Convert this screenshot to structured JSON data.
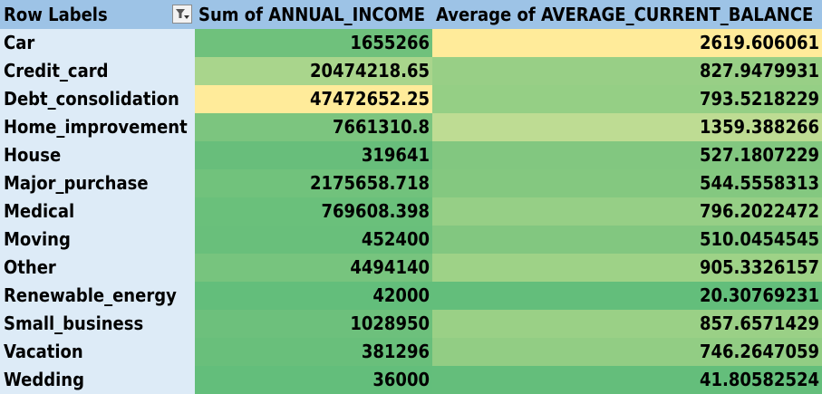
{
  "pivot": {
    "headers": {
      "row_labels": "Row Labels",
      "sum_income": "Sum of ANNUAL_INCOME",
      "avg_balance": "Average of AVERAGE_CURRENT_BALANCE"
    },
    "filter_icon": "filter-dropdown-icon",
    "colors": {
      "header_bg": "#9dc3e6",
      "row_label_bg": "#ddebf7",
      "scale_low": "#63be7b",
      "scale_high": "#ffeb84"
    },
    "rows": [
      {
        "label": "Car",
        "sum_income": "1655266",
        "avg_balance": "2619.606061",
        "sum_color": "#6fc17c",
        "avg_color": "#ffeb9a"
      },
      {
        "label": "Credit_card",
        "sum_income": "20474218.65",
        "avg_balance": "827.9479931",
        "sum_color": "#a9d58c",
        "avg_color": "#98cf86"
      },
      {
        "label": "Debt_consolidation",
        "sum_income": "47472652.25",
        "avg_balance": "793.5218229",
        "sum_color": "#ffeb9a",
        "avg_color": "#95cf85"
      },
      {
        "label": "Home_improvement",
        "sum_income": "7661310.8",
        "avg_balance": "1359.388266",
        "sum_color": "#7cc57f",
        "avg_color": "#bedc93"
      },
      {
        "label": "House",
        "sum_income": "319641",
        "avg_balance": "527.1807229",
        "sum_color": "#68be7b",
        "avg_color": "#82c780"
      },
      {
        "label": "Major_purchase",
        "sum_income": "2175658.718",
        "avg_balance": "544.5558313",
        "sum_color": "#71c27c",
        "avg_color": "#84c880"
      },
      {
        "label": "Medical",
        "sum_income": "769608.398",
        "avg_balance": "796.2022472",
        "sum_color": "#6ac07b",
        "avg_color": "#96cf86"
      },
      {
        "label": "Moving",
        "sum_income": "452400",
        "avg_balance": "510.0454545",
        "sum_color": "#69bf7b",
        "avg_color": "#82c780"
      },
      {
        "label": "Other",
        "sum_income": "4494140",
        "avg_balance": "905.3326157",
        "sum_color": "#77c47e",
        "avg_color": "#9ed287"
      },
      {
        "label": "Renewable_energy",
        "sum_income": "42000",
        "avg_balance": "20.30769231",
        "sum_color": "#63be7b",
        "avg_color": "#63be7b"
      },
      {
        "label": "Small_business",
        "sum_income": "1028950",
        "avg_balance": "857.6571429",
        "sum_color": "#6dc07c",
        "avg_color": "#9ad086"
      },
      {
        "label": "Vacation",
        "sum_income": "381296",
        "avg_balance": "746.2647059",
        "sum_color": "#69bf7b",
        "avg_color": "#92cd84"
      },
      {
        "label": "Wedding",
        "sum_income": "36000",
        "avg_balance": "41.80582524",
        "sum_color": "#63be7b",
        "avg_color": "#64be7b"
      }
    ]
  }
}
